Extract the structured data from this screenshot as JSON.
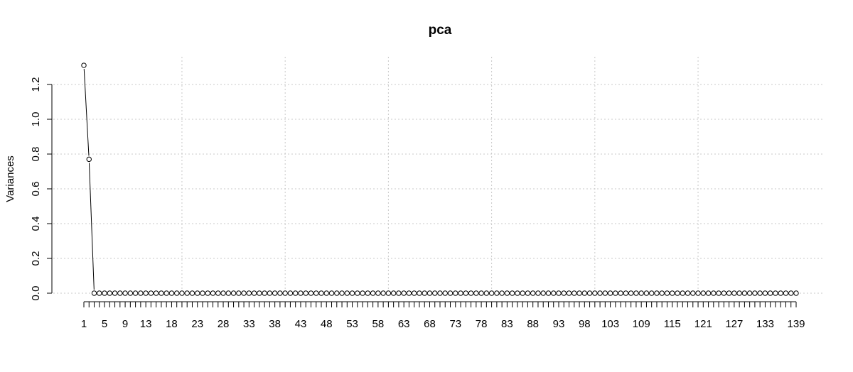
{
  "chart_data": {
    "type": "line",
    "title": "pca",
    "xlabel": "",
    "ylabel": "Variances",
    "x_range": [
      1,
      139
    ],
    "ylim": [
      0,
      1.3
    ],
    "y_ticks": [
      0.0,
      0.2,
      0.4,
      0.6,
      0.8,
      1.0,
      1.2
    ],
    "y_tick_labels": [
      "0.0",
      "0.2",
      "0.4",
      "0.6",
      "0.8",
      "1.0",
      "1.2"
    ],
    "x_tick_labels": [
      1,
      5,
      9,
      13,
      18,
      23,
      28,
      33,
      38,
      43,
      48,
      53,
      58,
      63,
      68,
      73,
      78,
      83,
      88,
      93,
      98,
      103,
      109,
      115,
      121,
      127,
      133,
      139
    ],
    "x_grid_at": [
      20,
      40,
      60,
      80,
      100,
      120
    ],
    "grid": true,
    "series": [
      {
        "values": [
          1.31,
          0.77,
          0.0,
          0.0,
          0.0,
          0.0,
          0.0,
          0.0,
          0.0,
          0.0,
          0.0,
          0.0,
          0.0,
          0.0,
          0.0,
          0.0,
          0.0,
          0.0,
          0.0,
          0.0,
          0.0,
          0.0,
          0.0,
          0.0,
          0.0,
          0.0,
          0.0,
          0.0,
          0.0,
          0.0,
          0.0,
          0.0,
          0.0,
          0.0,
          0.0,
          0.0,
          0.0,
          0.0,
          0.0,
          0.0,
          0.0,
          0.0,
          0.0,
          0.0,
          0.0,
          0.0,
          0.0,
          0.0,
          0.0,
          0.0,
          0.0,
          0.0,
          0.0,
          0.0,
          0.0,
          0.0,
          0.0,
          0.0,
          0.0,
          0.0,
          0.0,
          0.0,
          0.0,
          0.0,
          0.0,
          0.0,
          0.0,
          0.0,
          0.0,
          0.0,
          0.0,
          0.0,
          0.0,
          0.0,
          0.0,
          0.0,
          0.0,
          0.0,
          0.0,
          0.0,
          0.0,
          0.0,
          0.0,
          0.0,
          0.0,
          0.0,
          0.0,
          0.0,
          0.0,
          0.0,
          0.0,
          0.0,
          0.0,
          0.0,
          0.0,
          0.0,
          0.0,
          0.0,
          0.0,
          0.0,
          0.0,
          0.0,
          0.0,
          0.0,
          0.0,
          0.0,
          0.0,
          0.0,
          0.0,
          0.0,
          0.0,
          0.0,
          0.0,
          0.0,
          0.0,
          0.0,
          0.0,
          0.0,
          0.0,
          0.0,
          0.0,
          0.0,
          0.0,
          0.0,
          0.0,
          0.0,
          0.0,
          0.0,
          0.0,
          0.0,
          0.0,
          0.0,
          0.0,
          0.0,
          0.0,
          0.0,
          0.0,
          0.0,
          0.0
        ],
        "marker": "open-circle",
        "line_color": "#000000"
      }
    ]
  }
}
